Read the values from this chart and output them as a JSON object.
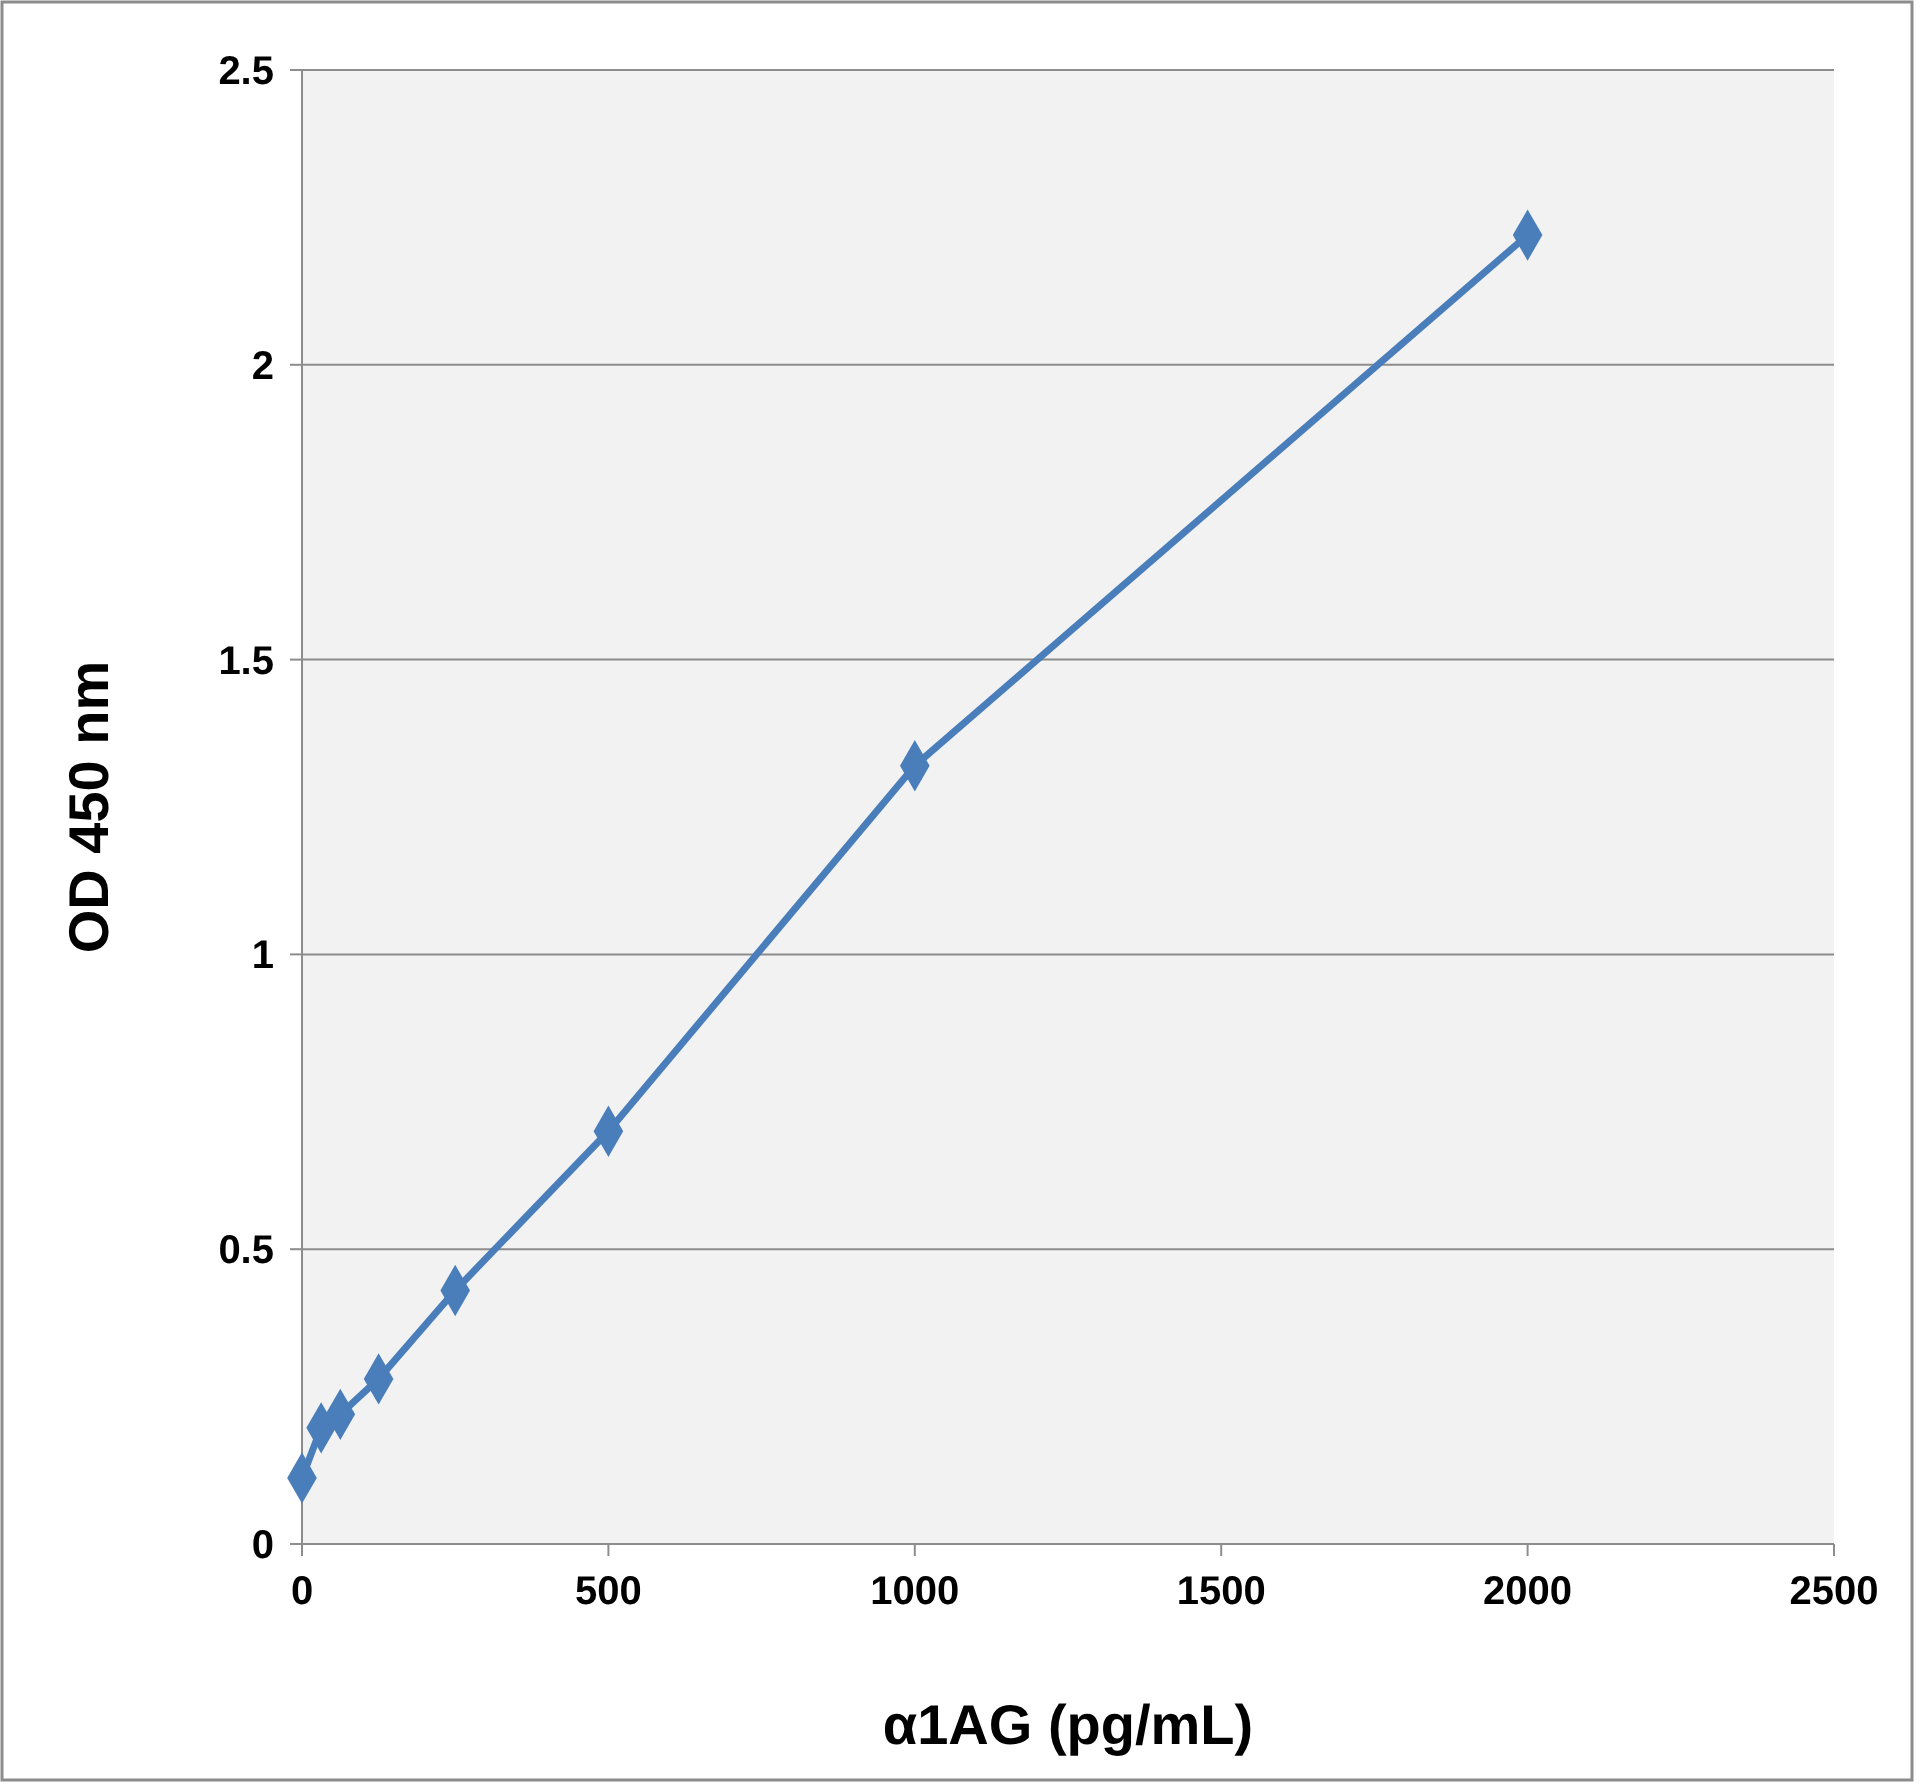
{
  "chart_data": {
    "type": "line",
    "xlabel": "α1AG (pg/mL)",
    "ylabel": "OD 450 nm",
    "x": [
      0,
      31.25,
      62.5,
      125,
      250,
      500,
      1000,
      2000
    ],
    "series": [
      {
        "color": "#4a7ebb",
        "values": [
          0.112,
          0.197,
          0.22,
          0.28,
          0.43,
          0.7,
          1.32,
          2.22
        ]
      }
    ],
    "xlim": [
      0,
      2500
    ],
    "xticks": [
      0,
      500,
      1000,
      1500,
      2000,
      2500
    ],
    "ylim": [
      0,
      2.5
    ],
    "yticks": [
      0,
      0.5,
      1,
      1.5,
      2,
      2.5
    ],
    "grid": "y",
    "marker": "diamond",
    "line_style": "solid"
  }
}
